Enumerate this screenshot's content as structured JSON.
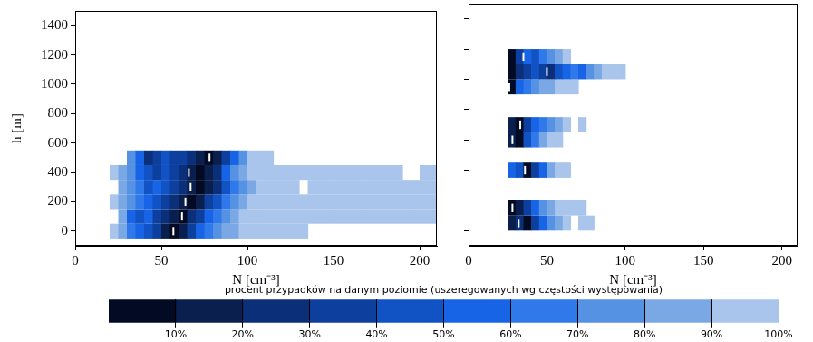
{
  "chart_data": [
    {
      "type": "heatmap",
      "x_label": "N [cm⁻³]",
      "y_label": "h [m]",
      "xlim": [
        0,
        210
      ],
      "xticks": [
        0,
        50,
        100,
        150,
        200
      ],
      "ylim": [
        -100,
        1500
      ],
      "yticks": [
        0,
        200,
        400,
        600,
        800,
        1000,
        1200,
        1400
      ],
      "grid": false,
      "bin_width": 5,
      "row_height": 100,
      "rows": [
        {
          "h": 0,
          "N_start": 20,
          "cells": [
            100,
            90,
            70,
            60,
            50,
            40,
            20,
            10,
            20,
            40,
            60,
            70,
            80,
            90,
            90,
            100,
            100,
            100,
            100,
            100,
            100,
            100,
            100
          ]
        },
        {
          "h": 100,
          "N_start": 25,
          "cells": [
            90,
            60,
            50,
            60,
            40,
            30,
            20,
            10,
            30,
            40,
            60,
            70,
            80,
            90,
            100,
            100,
            100,
            100,
            100,
            100,
            100,
            100,
            100,
            100,
            100,
            100,
            100,
            100,
            100,
            100,
            100,
            100,
            100,
            100,
            100,
            100,
            100
          ]
        },
        {
          "h": 200,
          "N_start": 20,
          "cells": [
            100,
            90,
            80,
            70,
            60,
            50,
            40,
            30,
            20,
            10,
            20,
            40,
            50,
            70,
            80,
            90,
            100,
            100,
            100,
            100,
            100,
            100,
            100,
            100,
            100,
            100,
            100,
            100,
            100,
            100,
            100,
            100,
            100,
            100,
            100,
            100,
            100,
            100
          ]
        },
        {
          "h": 300,
          "N_start": 25,
          "cells": [
            90,
            80,
            70,
            50,
            60,
            50,
            40,
            30,
            20,
            10,
            20,
            30,
            50,
            70,
            80,
            90,
            100,
            100,
            100,
            100,
            100,
            null,
            100,
            100,
            100,
            100,
            100,
            100,
            100,
            100,
            100,
            100,
            100,
            100,
            100,
            100,
            100
          ]
        },
        {
          "h": 400,
          "N_start": 20,
          "cells": [
            100,
            90,
            80,
            60,
            50,
            40,
            50,
            40,
            30,
            20,
            10,
            20,
            30,
            60,
            80,
            90,
            100,
            100,
            100,
            100,
            100,
            100,
            100,
            100,
            100,
            100,
            100,
            100,
            100,
            100,
            100,
            100,
            100,
            100,
            null,
            null,
            100,
            100
          ]
        },
        {
          "h": 500,
          "N_start": 30,
          "cells": [
            80,
            60,
            30,
            40,
            50,
            40,
            40,
            30,
            20,
            10,
            20,
            40,
            60,
            80,
            100,
            100,
            100
          ]
        }
      ],
      "medians": [
        {
          "N": 57,
          "h": 0
        },
        {
          "N": 62,
          "h": 100
        },
        {
          "N": 64,
          "h": 200
        },
        {
          "N": 67,
          "h": 300
        },
        {
          "N": 66,
          "h": 400
        },
        {
          "N": 78,
          "h": 500
        }
      ]
    },
    {
      "type": "heatmap",
      "x_label": "N [cm⁻³]",
      "xlim": [
        0,
        210
      ],
      "xticks": [
        0,
        50,
        100,
        150,
        200
      ],
      "ylim": [
        -100,
        1500
      ],
      "yticks": [
        0,
        200,
        400,
        600,
        800,
        1000,
        1200,
        1400
      ],
      "grid": false,
      "tick_labels": "x",
      "bin_width": 5,
      "row_height": 100,
      "rows": [
        {
          "h": 50,
          "N_start": 25,
          "cells": [
            20,
            30,
            10,
            40,
            60,
            80,
            90,
            100,
            null,
            100,
            100
          ]
        },
        {
          "h": 150,
          "N_start": 25,
          "cells": [
            10,
            20,
            40,
            60,
            80,
            90,
            100,
            100,
            100,
            100
          ]
        },
        {
          "h": 400,
          "N_start": 25,
          "cells": [
            60,
            50,
            10,
            40,
            60,
            90,
            100,
            100
          ]
        },
        {
          "h": 600,
          "N_start": 25,
          "cells": [
            20,
            10,
            50,
            70,
            90,
            100,
            100
          ]
        },
        {
          "h": 700,
          "N_start": 25,
          "cells": [
            20,
            10,
            40,
            60,
            70,
            80,
            90,
            100,
            null,
            100
          ]
        },
        {
          "h": 950,
          "N_start": 25,
          "cells": [
            10,
            60,
            70,
            80,
            90,
            90,
            100,
            100,
            100
          ]
        },
        {
          "h": 1050,
          "N_start": 25,
          "cells": [
            10,
            30,
            40,
            50,
            40,
            30,
            50,
            60,
            70,
            60,
            80,
            90,
            100,
            100,
            100
          ]
        },
        {
          "h": 1150,
          "N_start": 25,
          "cells": [
            10,
            40,
            60,
            50,
            70,
            80,
            90,
            100
          ]
        }
      ],
      "medians": [
        {
          "N": 32,
          "h": 50
        },
        {
          "N": 28,
          "h": 150
        },
        {
          "N": 36,
          "h": 400
        },
        {
          "N": 28,
          "h": 600
        },
        {
          "N": 33,
          "h": 700
        },
        {
          "N": 26,
          "h": 950
        },
        {
          "N": 50,
          "h": 1050
        },
        {
          "N": 35,
          "h": 1150
        }
      ]
    },
    {
      "type": "colorbar",
      "title": "procent przypadków na danym poziomie (uszeregowanych wg częstości występowania)",
      "range": [
        0,
        100
      ],
      "ticks": [
        {
          "value": 10,
          "label": "10%"
        },
        {
          "value": 20,
          "label": "20%"
        },
        {
          "value": 30,
          "label": "30%"
        },
        {
          "value": 40,
          "label": "40%"
        },
        {
          "value": 50,
          "label": "50%"
        },
        {
          "value": 60,
          "label": "60%"
        },
        {
          "value": 70,
          "label": "70%"
        },
        {
          "value": 80,
          "label": "80%"
        },
        {
          "value": 90,
          "label": "90%"
        },
        {
          "value": 100,
          "label": "100%"
        }
      ],
      "segments": [
        {
          "from": 0,
          "to": 10,
          "color": "#030b24"
        },
        {
          "from": 10,
          "to": 20,
          "color": "#0a1f4d"
        },
        {
          "from": 20,
          "to": 30,
          "color": "#0b2f78"
        },
        {
          "from": 30,
          "to": 40,
          "color": "#0c3f9e"
        },
        {
          "from": 40,
          "to": 50,
          "color": "#1153c4"
        },
        {
          "from": 50,
          "to": 60,
          "color": "#1765e6"
        },
        {
          "from": 60,
          "to": 70,
          "color": "#2f79ea"
        },
        {
          "from": 70,
          "to": 80,
          "color": "#5592e3"
        },
        {
          "from": 80,
          "to": 90,
          "color": "#7aa8e4"
        },
        {
          "from": 90,
          "to": 100,
          "color": "#a9c5ec"
        }
      ]
    }
  ]
}
